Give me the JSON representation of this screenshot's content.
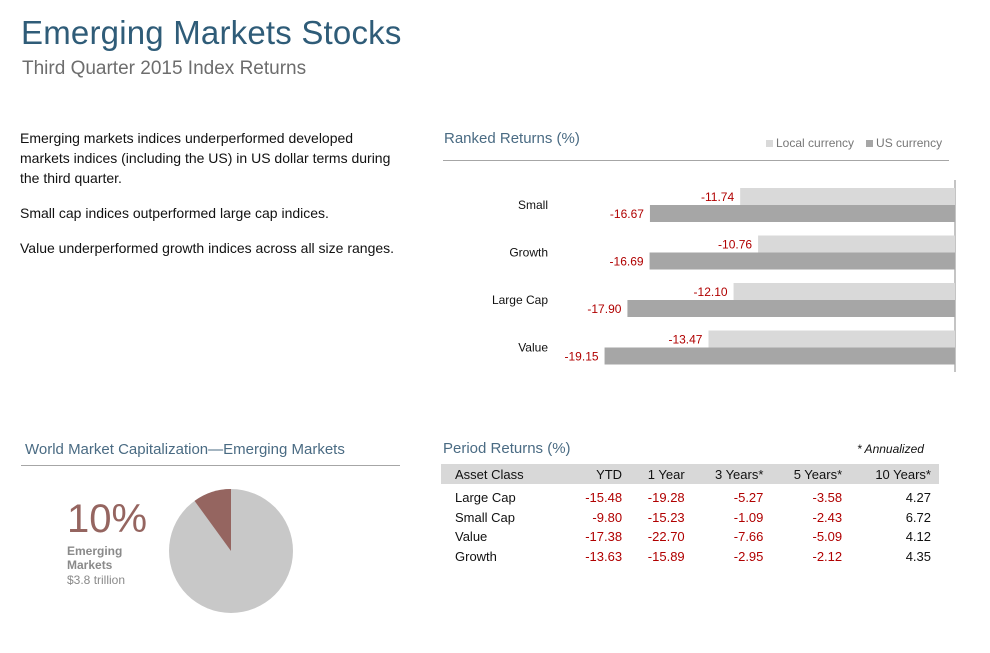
{
  "header": {
    "title": "Emerging Markets Stocks",
    "subtitle": "Third Quarter 2015 Index Returns"
  },
  "bullets": [
    "Emerging markets indices underperformed developed markets indices (including the US) in US dollar terms during the third quarter.",
    "Small cap indices outperformed  large cap indices.",
    "Value underperformed growth indices across all size ranges."
  ],
  "colors": {
    "title": "#2f5c78",
    "local": "#d9d9d9",
    "us": "#a6a6a6",
    "negative": "#b00000",
    "pie_main": "#c8c8c8",
    "pie_slice": "#956560"
  },
  "ranked": {
    "title": "Ranked Returns (%)",
    "legend": [
      "Local currency",
      "US currency"
    ]
  },
  "world": {
    "title": "World Market Capitalization—Emerging Markets",
    "percent": "10%",
    "label": "Emerging Markets",
    "sub": "$3.8 trillion"
  },
  "period": {
    "title": "Period Returns (%)",
    "note": "* Annualized",
    "headers": [
      "Asset Class",
      "YTD",
      "1 Year",
      "3 Years*",
      "5 Years*",
      "10 Years*"
    ],
    "rows": [
      [
        "Large Cap",
        "-15.48",
        "-19.28",
        "-5.27",
        "-3.58",
        "4.27"
      ],
      [
        "Small Cap",
        "-9.80",
        "-15.23",
        "-1.09",
        "-2.43",
        "6.72"
      ],
      [
        "Value",
        "-17.38",
        "-22.70",
        "-7.66",
        "-5.09",
        "4.12"
      ],
      [
        "Growth",
        "-13.63",
        "-15.89",
        "-2.95",
        "-2.12",
        "4.35"
      ]
    ]
  },
  "chart_data": [
    {
      "type": "bar",
      "orientation": "horizontal",
      "title": "Ranked Returns (%)",
      "categories": [
        "Small",
        "Growth",
        "Large Cap",
        "Value"
      ],
      "series": [
        {
          "name": "Local currency",
          "values": [
            -11.74,
            -10.76,
            -12.1,
            -13.47
          ]
        },
        {
          "name": "US currency",
          "values": [
            -16.67,
            -16.69,
            -17.9,
            -19.15
          ]
        }
      ],
      "legend": "top-right",
      "grid": false
    },
    {
      "type": "pie",
      "title": "World Market Capitalization—Emerging Markets",
      "slices": [
        {
          "label": "Emerging Markets",
          "value": 10
        },
        {
          "value": 90
        }
      ]
    }
  ]
}
